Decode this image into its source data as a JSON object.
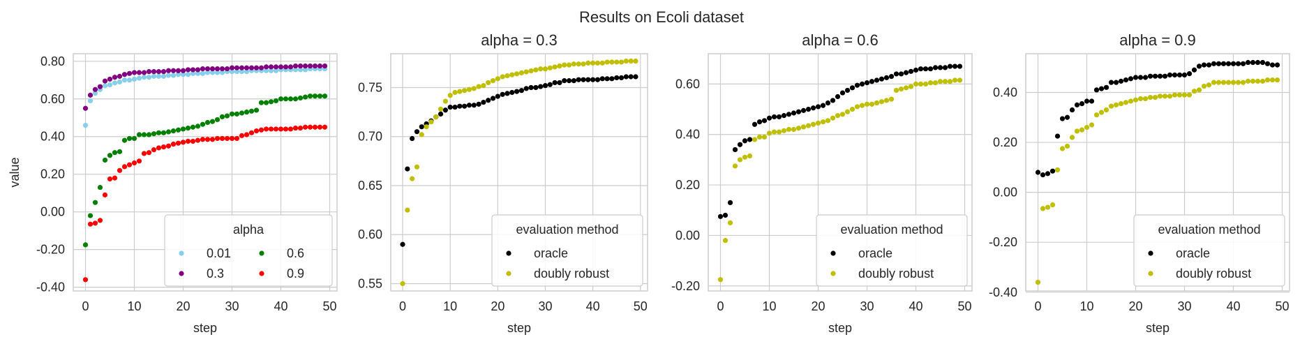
{
  "figure": {
    "title": "Results on Ecoli dataset"
  },
  "chart_data": [
    {
      "type": "scatter",
      "title": "",
      "xlabel": "step",
      "ylabel": "value",
      "xlim": [
        -2.5,
        51.5
      ],
      "ylim": [
        -0.42,
        0.84
      ],
      "xticks": [
        0,
        10,
        20,
        30,
        40,
        50
      ],
      "yticks": [
        -0.4,
        -0.2,
        0.0,
        0.2,
        0.4,
        0.6,
        0.8
      ],
      "ytick_labels": [
        "-0.40",
        "-0.20",
        "0.00",
        "0.20",
        "0.40",
        "0.60",
        "0.80"
      ],
      "grid": true,
      "legend": {
        "title": "alpha",
        "location": "lower-right",
        "columns": 2,
        "entries": [
          "0.01",
          "0.3",
          "0.6",
          "0.9"
        ]
      },
      "series": [
        {
          "name": "0.01",
          "color": "#87ceeb",
          "values": [
            0.46,
            0.59,
            0.63,
            0.65,
            0.67,
            0.675,
            0.685,
            0.69,
            0.7,
            0.7,
            0.705,
            0.71,
            0.715,
            0.715,
            0.72,
            0.72,
            0.72,
            0.725,
            0.725,
            0.73,
            0.73,
            0.73,
            0.735,
            0.735,
            0.735,
            0.74,
            0.74,
            0.74,
            0.74,
            0.745,
            0.745,
            0.745,
            0.745,
            0.745,
            0.75,
            0.75,
            0.75,
            0.75,
            0.75,
            0.75,
            0.755,
            0.755,
            0.755,
            0.755,
            0.755,
            0.755,
            0.76,
            0.76,
            0.76,
            0.76
          ]
        },
        {
          "name": "0.3",
          "color": "#800080",
          "values": [
            0.55,
            0.62,
            0.65,
            0.665,
            0.695,
            0.705,
            0.715,
            0.72,
            0.73,
            0.735,
            0.74,
            0.74,
            0.74,
            0.745,
            0.745,
            0.745,
            0.745,
            0.75,
            0.75,
            0.75,
            0.75,
            0.755,
            0.755,
            0.755,
            0.76,
            0.76,
            0.76,
            0.76,
            0.76,
            0.76,
            0.765,
            0.765,
            0.765,
            0.765,
            0.765,
            0.765,
            0.765,
            0.77,
            0.77,
            0.77,
            0.77,
            0.77,
            0.77,
            0.775,
            0.775,
            0.775,
            0.775,
            0.775,
            0.775,
            0.775
          ]
        },
        {
          "name": "0.6",
          "color": "#008000",
          "values": [
            -0.175,
            -0.02,
            0.05,
            0.13,
            0.275,
            0.3,
            0.315,
            0.32,
            0.38,
            0.39,
            0.39,
            0.41,
            0.41,
            0.41,
            0.415,
            0.42,
            0.42,
            0.425,
            0.43,
            0.435,
            0.44,
            0.445,
            0.45,
            0.455,
            0.465,
            0.475,
            0.48,
            0.49,
            0.505,
            0.51,
            0.52,
            0.52,
            0.525,
            0.53,
            0.535,
            0.54,
            0.58,
            0.58,
            0.585,
            0.59,
            0.6,
            0.6,
            0.6,
            0.6,
            0.605,
            0.61,
            0.615,
            0.615,
            0.615,
            0.615
          ]
        },
        {
          "name": "0.9",
          "color": "#ff0000",
          "values": [
            -0.36,
            -0.065,
            -0.06,
            -0.045,
            0.09,
            0.175,
            0.18,
            0.22,
            0.24,
            0.25,
            0.26,
            0.27,
            0.31,
            0.315,
            0.33,
            0.34,
            0.345,
            0.35,
            0.36,
            0.365,
            0.37,
            0.375,
            0.375,
            0.38,
            0.385,
            0.385,
            0.385,
            0.39,
            0.39,
            0.39,
            0.39,
            0.39,
            0.405,
            0.41,
            0.42,
            0.43,
            0.435,
            0.44,
            0.44,
            0.44,
            0.44,
            0.44,
            0.44,
            0.445,
            0.445,
            0.45,
            0.45,
            0.45,
            0.45,
            0.45
          ]
        }
      ]
    },
    {
      "type": "scatter",
      "title": "alpha = 0.3",
      "xlabel": "step",
      "ylabel": "",
      "xlim": [
        -2.5,
        51.5
      ],
      "ylim": [
        0.5425,
        0.7845
      ],
      "xticks": [
        0,
        10,
        20,
        30,
        40,
        50
      ],
      "yticks": [
        0.55,
        0.6,
        0.65,
        0.7,
        0.75
      ],
      "ytick_labels": [
        "0.55",
        "0.60",
        "0.65",
        "0.70",
        "0.75"
      ],
      "grid": true,
      "legend": {
        "title": "evaluation method",
        "location": "lower-right",
        "columns": 1,
        "entries": [
          "oracle",
          "doubly robust"
        ]
      },
      "series": [
        {
          "name": "oracle",
          "color": "#000000",
          "values": [
            0.59,
            0.667,
            0.698,
            0.705,
            0.71,
            0.713,
            0.716,
            0.72,
            0.723,
            0.727,
            0.73,
            0.73,
            0.731,
            0.731,
            0.732,
            0.732,
            0.733,
            0.735,
            0.737,
            0.739,
            0.741,
            0.743,
            0.744,
            0.745,
            0.746,
            0.747,
            0.749,
            0.75,
            0.75,
            0.751,
            0.752,
            0.753,
            0.755,
            0.755,
            0.757,
            0.757,
            0.757,
            0.758,
            0.758,
            0.758,
            0.758,
            0.758,
            0.759,
            0.759,
            0.759,
            0.76,
            0.76,
            0.761,
            0.761,
            0.761
          ]
        },
        {
          "name": "doubly robust",
          "color": "#bfbf00",
          "values": [
            0.55,
            0.625,
            0.657,
            0.669,
            0.702,
            0.71,
            0.715,
            0.72,
            0.728,
            0.736,
            0.742,
            0.745,
            0.746,
            0.747,
            0.748,
            0.749,
            0.751,
            0.752,
            0.755,
            0.757,
            0.759,
            0.761,
            0.762,
            0.763,
            0.764,
            0.765,
            0.766,
            0.767,
            0.768,
            0.769,
            0.769,
            0.77,
            0.771,
            0.772,
            0.773,
            0.773,
            0.774,
            0.774,
            0.774,
            0.775,
            0.775,
            0.775,
            0.775,
            0.776,
            0.776,
            0.776,
            0.776,
            0.777,
            0.777,
            0.777
          ]
        }
      ]
    },
    {
      "type": "scatter",
      "title": "alpha = 0.6",
      "xlabel": "step",
      "ylabel": "",
      "xlim": [
        -2.5,
        51.5
      ],
      "ylim": [
        -0.22,
        0.72
      ],
      "xticks": [
        0,
        10,
        20,
        30,
        40,
        50
      ],
      "yticks": [
        -0.2,
        0.0,
        0.2,
        0.4,
        0.6
      ],
      "ytick_labels": [
        "-0.20",
        "0.00",
        "0.20",
        "0.40",
        "0.60"
      ],
      "grid": true,
      "legend": {
        "title": "evaluation method",
        "location": "lower-right",
        "columns": 1,
        "entries": [
          "oracle",
          "doubly robust"
        ]
      },
      "series": [
        {
          "name": "oracle",
          "color": "#000000",
          "values": [
            0.075,
            0.08,
            0.13,
            0.34,
            0.36,
            0.375,
            0.38,
            0.44,
            0.45,
            0.455,
            0.465,
            0.47,
            0.47,
            0.475,
            0.48,
            0.485,
            0.49,
            0.495,
            0.5,
            0.505,
            0.51,
            0.515,
            0.525,
            0.535,
            0.55,
            0.565,
            0.575,
            0.585,
            0.595,
            0.6,
            0.605,
            0.61,
            0.615,
            0.62,
            0.625,
            0.63,
            0.64,
            0.64,
            0.645,
            0.65,
            0.655,
            0.66,
            0.66,
            0.66,
            0.665,
            0.665,
            0.665,
            0.67,
            0.67,
            0.67
          ]
        },
        {
          "name": "doubly robust",
          "color": "#bfbf00",
          "values": [
            -0.175,
            -0.02,
            0.05,
            0.275,
            0.3,
            0.31,
            0.315,
            0.38,
            0.39,
            0.39,
            0.405,
            0.41,
            0.41,
            0.415,
            0.42,
            0.42,
            0.425,
            0.43,
            0.435,
            0.44,
            0.445,
            0.45,
            0.455,
            0.465,
            0.475,
            0.48,
            0.49,
            0.5,
            0.51,
            0.515,
            0.52,
            0.52,
            0.525,
            0.53,
            0.535,
            0.54,
            0.575,
            0.58,
            0.585,
            0.59,
            0.6,
            0.6,
            0.6,
            0.605,
            0.605,
            0.61,
            0.61,
            0.61,
            0.615,
            0.615
          ]
        }
      ]
    },
    {
      "type": "scatter",
      "title": "alpha = 0.9",
      "xlabel": "step",
      "ylabel": "",
      "xlim": [
        -2.5,
        51.5
      ],
      "ylim": [
        -0.395,
        0.555
      ],
      "xticks": [
        0,
        10,
        20,
        30,
        40,
        50
      ],
      "yticks": [
        -0.4,
        -0.2,
        0.0,
        0.2,
        0.4
      ],
      "ytick_labels": [
        "-0.40",
        "-0.20",
        "0.00",
        "0.20",
        "0.40"
      ],
      "grid": true,
      "legend": {
        "title": "evaluation method",
        "location": "lower-right",
        "columns": 1,
        "entries": [
          "oracle",
          "doubly robust"
        ]
      },
      "series": [
        {
          "name": "oracle",
          "color": "#000000",
          "values": [
            0.08,
            0.07,
            0.075,
            0.085,
            0.225,
            0.295,
            0.3,
            0.33,
            0.35,
            0.355,
            0.365,
            0.365,
            0.41,
            0.415,
            0.42,
            0.44,
            0.44,
            0.445,
            0.45,
            0.455,
            0.46,
            0.46,
            0.46,
            0.465,
            0.465,
            0.465,
            0.465,
            0.47,
            0.47,
            0.47,
            0.47,
            0.475,
            0.49,
            0.505,
            0.51,
            0.51,
            0.515,
            0.515,
            0.515,
            0.515,
            0.515,
            0.515,
            0.515,
            0.52,
            0.52,
            0.52,
            0.52,
            0.515,
            0.51,
            0.51
          ]
        },
        {
          "name": "doubly robust",
          "color": "#bfbf00",
          "values": [
            -0.36,
            -0.065,
            -0.06,
            -0.05,
            0.09,
            0.175,
            0.185,
            0.22,
            0.245,
            0.25,
            0.26,
            0.27,
            0.31,
            0.32,
            0.33,
            0.345,
            0.35,
            0.355,
            0.36,
            0.365,
            0.37,
            0.375,
            0.375,
            0.38,
            0.38,
            0.385,
            0.385,
            0.385,
            0.39,
            0.39,
            0.39,
            0.39,
            0.405,
            0.41,
            0.425,
            0.43,
            0.44,
            0.44,
            0.44,
            0.44,
            0.44,
            0.44,
            0.44,
            0.445,
            0.445,
            0.445,
            0.445,
            0.45,
            0.45,
            0.45
          ]
        }
      ]
    }
  ]
}
